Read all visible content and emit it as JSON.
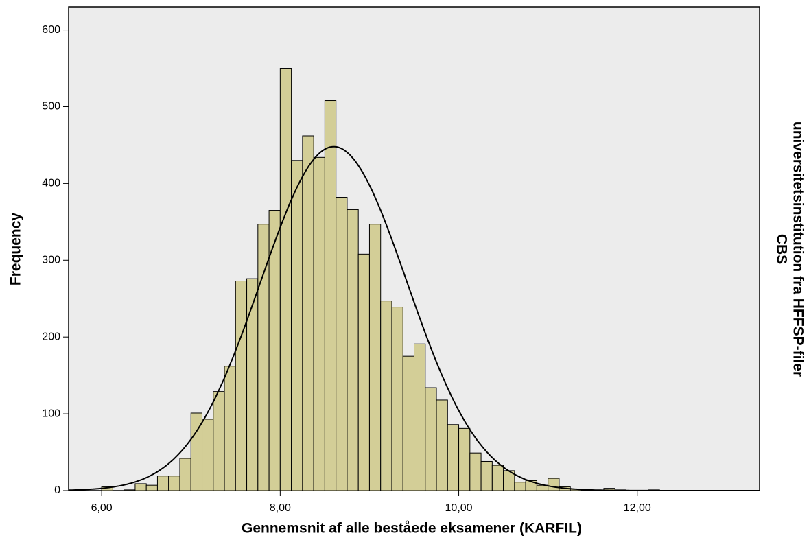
{
  "chart_data": {
    "type": "histogram",
    "xlabel": "Gennemsnit af alle beståede eksamener (KARFIL)",
    "ylabel": "Frequency",
    "panel_label": [
      "universitetsinstitution fra HFFSP-filer",
      "CBS"
    ],
    "bins": [
      6.0,
      6.125,
      6.25,
      6.375,
      6.5,
      6.625,
      6.75,
      6.875,
      7.0,
      7.125,
      7.25,
      7.375,
      7.5,
      7.625,
      7.75,
      7.875,
      8.0,
      8.125,
      8.25,
      8.375,
      8.5,
      8.625,
      8.75,
      8.875,
      9.0,
      9.125,
      9.25,
      9.375,
      9.5,
      9.625,
      9.75,
      9.875,
      10.0,
      10.125,
      10.25,
      10.375,
      10.5,
      10.625,
      10.75,
      10.875,
      11.0,
      11.125,
      11.25,
      11.375,
      11.5,
      11.625,
      11.75,
      11.875,
      12.0,
      12.125,
      12.25
    ],
    "values": [
      5,
      0,
      1,
      9,
      7,
      19,
      19,
      42,
      101,
      93,
      129,
      162,
      273,
      276,
      347,
      365,
      550,
      430,
      462,
      434,
      508,
      382,
      366,
      308,
      347,
      247,
      239,
      175,
      191,
      134,
      118,
      86,
      81,
      49,
      38,
      33,
      26,
      11,
      13,
      7,
      16,
      5,
      2,
      1,
      0,
      3,
      1,
      0,
      0,
      1
    ],
    "color": "#d3ce97",
    "curve": {
      "mean": 8.6,
      "std": 0.82,
      "peak": 448
    },
    "xlim": [
      5.63,
      13.37
    ],
    "ylim": [
      0,
      630
    ],
    "xticks": [
      {
        "value": 6,
        "label": "6,00"
      },
      {
        "value": 8,
        "label": "8,00"
      },
      {
        "value": 10,
        "label": "10,00"
      },
      {
        "value": 12,
        "label": "12,00"
      }
    ],
    "yticks": [
      0,
      100,
      200,
      300,
      400,
      500,
      600
    ],
    "grid": false
  }
}
